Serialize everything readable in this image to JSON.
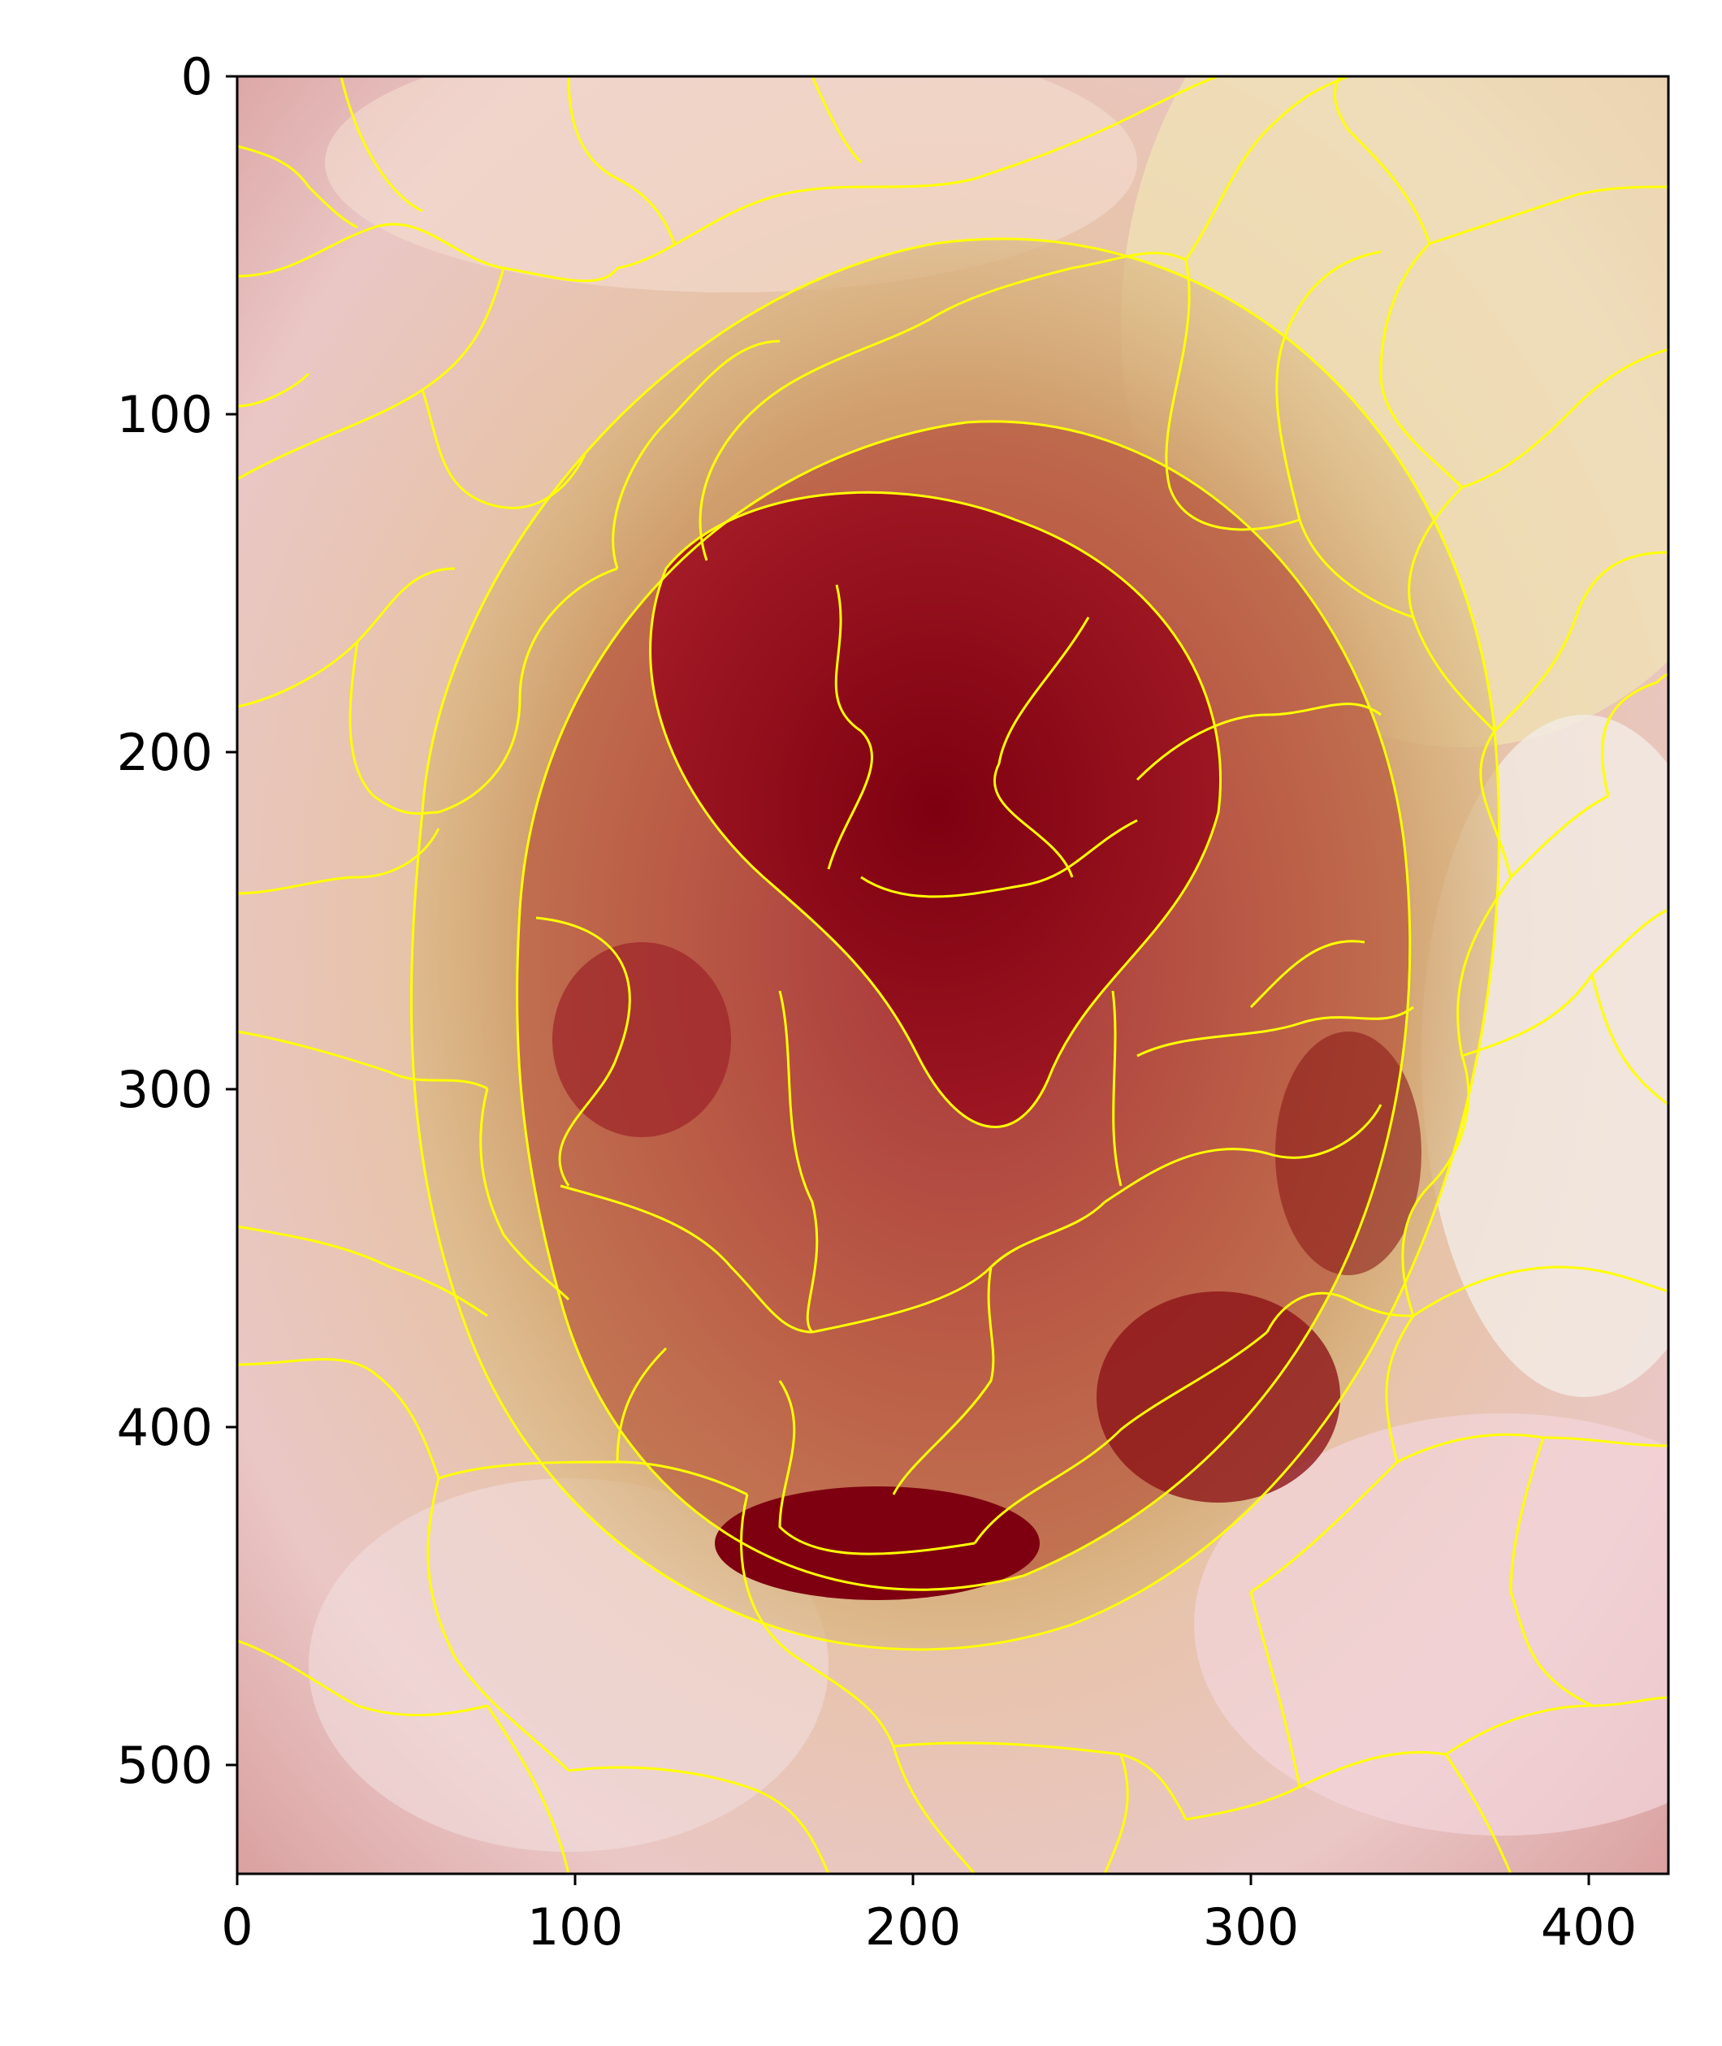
{
  "figure": {
    "description_free": true,
    "x_ticks": [
      "0",
      "100",
      "200",
      "300",
      "400"
    ],
    "y_ticks": [
      "0",
      "100",
      "200",
      "300",
      "400",
      "500"
    ],
    "x_range": [
      0,
      424
    ],
    "y_range": [
      0,
      536
    ],
    "colors": {
      "boundary": "#ffff00",
      "core": "#8b0010",
      "lesion": "#c46a4a",
      "halo": "#d8b27a",
      "skin": "#eec0bc"
    }
  }
}
